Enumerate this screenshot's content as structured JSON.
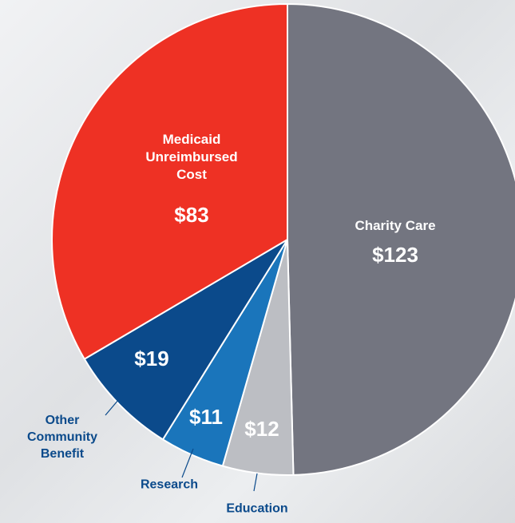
{
  "chart_data": {
    "type": "pie",
    "categories": [
      "Charity Care",
      "Education",
      "Research",
      "Other Community Benefit",
      "Medicaid Unreimbursed Cost"
    ],
    "values": [
      123,
      12,
      11,
      19,
      83
    ],
    "value_labels": [
      "$123",
      "$12",
      "$11",
      "$19",
      "$83"
    ],
    "colors": [
      "#737580",
      "#bcbec3",
      "#1a75bb",
      "#0b4a8b",
      "#ee3124"
    ]
  }
}
